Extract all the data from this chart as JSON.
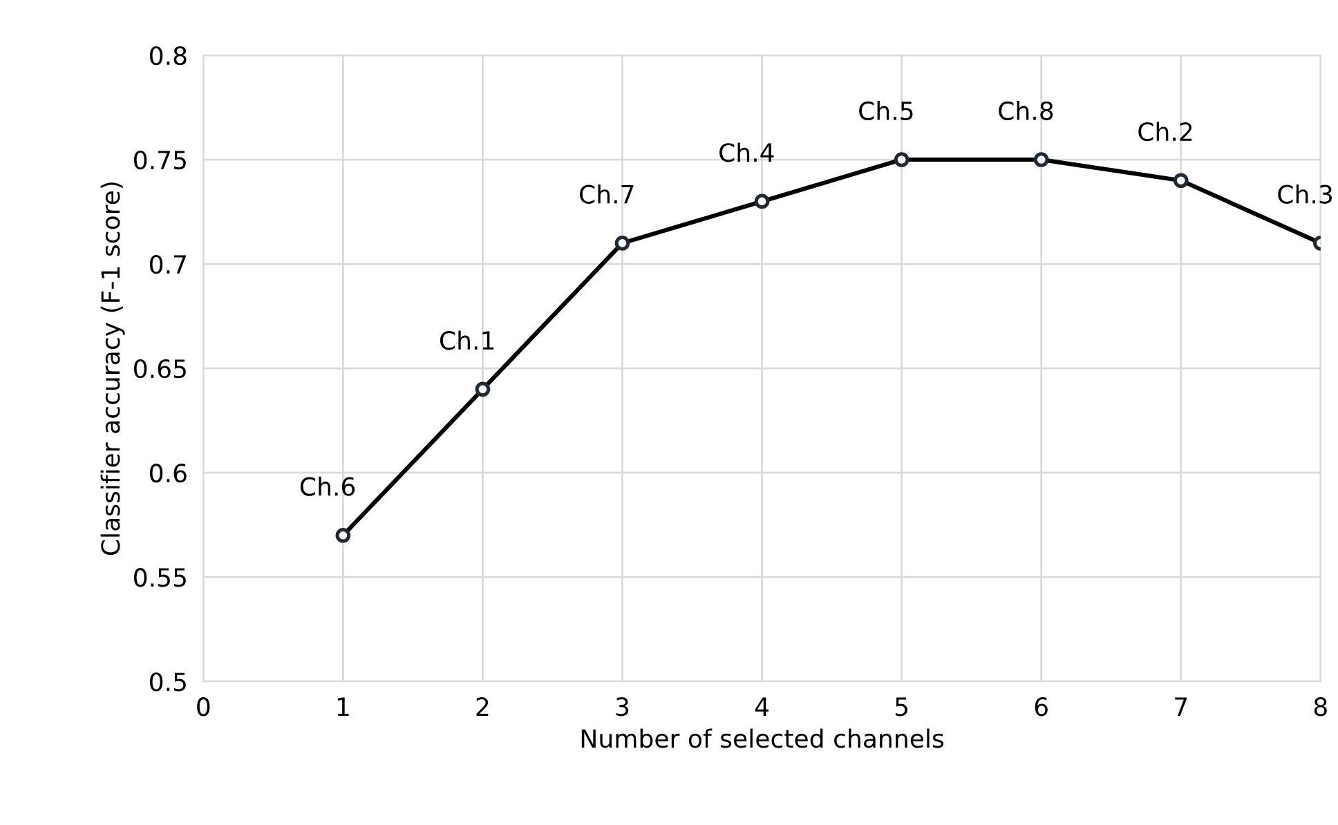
{
  "chart_data": {
    "type": "line",
    "xlabel": "Number of selected channels",
    "ylabel": "Classifier accuracy (F-1 score)",
    "x": [
      1,
      2,
      3,
      4,
      5,
      6,
      7,
      8
    ],
    "series": [
      {
        "color": "#000000",
        "values": [
          0.57,
          0.64,
          0.71,
          0.73,
          0.75,
          0.75,
          0.74,
          0.71
        ]
      }
    ],
    "xlim": [
      0,
      8
    ],
    "xticks": [
      0,
      1,
      2,
      3,
      4,
      5,
      6,
      7,
      8
    ],
    "ylim": [
      0.5,
      0.8
    ],
    "yticks": [
      0.5,
      0.55,
      0.6,
      0.65,
      0.7,
      0.75,
      0.8
    ],
    "grid": true,
    "marker": "circle",
    "line_style": "solid",
    "annotations": [
      {
        "text": "Ch.6",
        "x": 1,
        "y": 0.57
      },
      {
        "text": "Ch.1",
        "x": 2,
        "y": 0.64
      },
      {
        "text": "Ch.7",
        "x": 3,
        "y": 0.71
      },
      {
        "text": "Ch.4",
        "x": 4,
        "y": 0.73
      },
      {
        "text": "Ch.5",
        "x": 5,
        "y": 0.75
      },
      {
        "text": "Ch.8",
        "x": 6,
        "y": 0.75
      },
      {
        "text": "Ch.2",
        "x": 7,
        "y": 0.74
      },
      {
        "text": "Ch.3",
        "x": 8,
        "y": 0.71
      }
    ]
  }
}
